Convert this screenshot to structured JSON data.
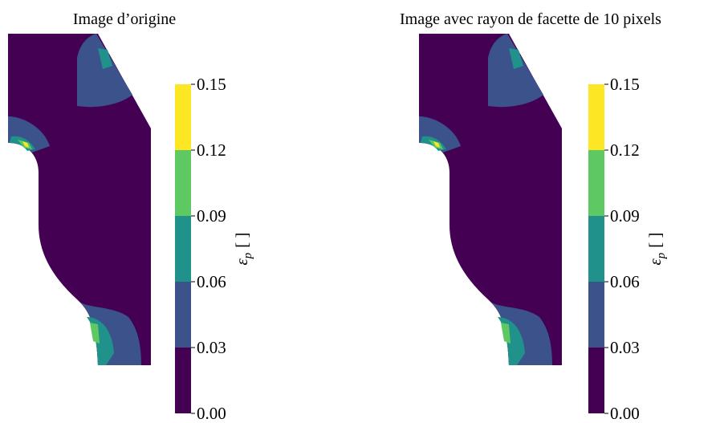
{
  "chart_data": [
    {
      "type": "contour",
      "title": "Image d’origine",
      "clim": [
        {
          "value": 0,
          "label": "0.00"
        },
        0.15
      ],
      "yticks": [
        {
          "value": 0,
          "label": "0.00"
        },
        0.03,
        0.06,
        0.09,
        0.12,
        0.15
      ],
      "colors": [
        "#440154",
        "#3b528b",
        "#21918c",
        "#5ec962",
        "#fde725"
      ],
      "colorbar_label": {
        "symbol": "ε",
        "subscript": "p",
        "unit": "[ ]"
      }
    },
    {
      "type": "contour",
      "title": "Image avec rayon de facette de 10 pixels",
      "clim": [
        {
          "value": 0,
          "label": "0.00"
        },
        0.15
      ],
      "yticks": [
        {
          "value": 0,
          "label": "0.00"
        },
        0.03,
        0.06,
        0.09,
        0.12,
        0.15
      ],
      "colors": [
        "#440154",
        "#3b528b",
        "#21918c",
        "#5ec962",
        "#fde725"
      ],
      "colorbar_label": {
        "symbol": "ε",
        "subscript": "p",
        "unit": "[ ]"
      }
    }
  ]
}
